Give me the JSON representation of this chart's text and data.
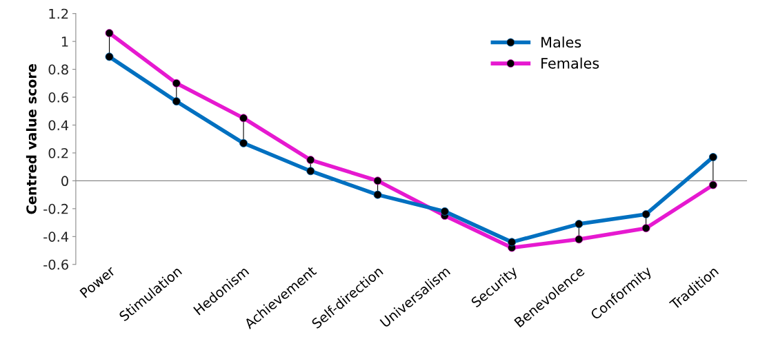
{
  "chart_data": {
    "type": "line",
    "ylabel": "Centred value score",
    "categories": [
      "Power",
      "Stimulation",
      "Hedonism",
      "Achievement",
      "Self-direction",
      "Universalism",
      "Security",
      "Benevolence",
      "Conformity",
      "Tradition"
    ],
    "series": [
      {
        "name": "Males",
        "color": "#0070c0",
        "values": [
          0.89,
          0.57,
          0.27,
          0.07,
          -0.1,
          -0.22,
          -0.44,
          -0.31,
          -0.24,
          0.17
        ]
      },
      {
        "name": "Females",
        "color": "#e619d0",
        "values": [
          1.06,
          0.7,
          0.45,
          0.15,
          0.0,
          -0.25,
          -0.48,
          -0.42,
          -0.34,
          -0.03
        ]
      }
    ],
    "ylim": [
      -0.6,
      1.2
    ],
    "yticks": [
      {
        "value": -0.6,
        "label": "-0.6"
      },
      {
        "value": -0.4,
        "label": "-0.4"
      },
      {
        "value": -0.2,
        "label": "-0.2"
      },
      {
        "value": 0,
        "label": "0"
      },
      {
        "value": 0.2,
        "label": "0.2"
      },
      {
        "value": 0.4,
        "label": "0.4"
      },
      {
        "value": 0.6,
        "label": "0.6"
      },
      {
        "value": 0.8,
        "label": "0.8"
      },
      {
        "value": 1,
        "label": "1"
      },
      {
        "value": 1.2,
        "label": "1.2"
      }
    ],
    "legend": "top right",
    "marker": "circle",
    "line_style": "solid"
  }
}
